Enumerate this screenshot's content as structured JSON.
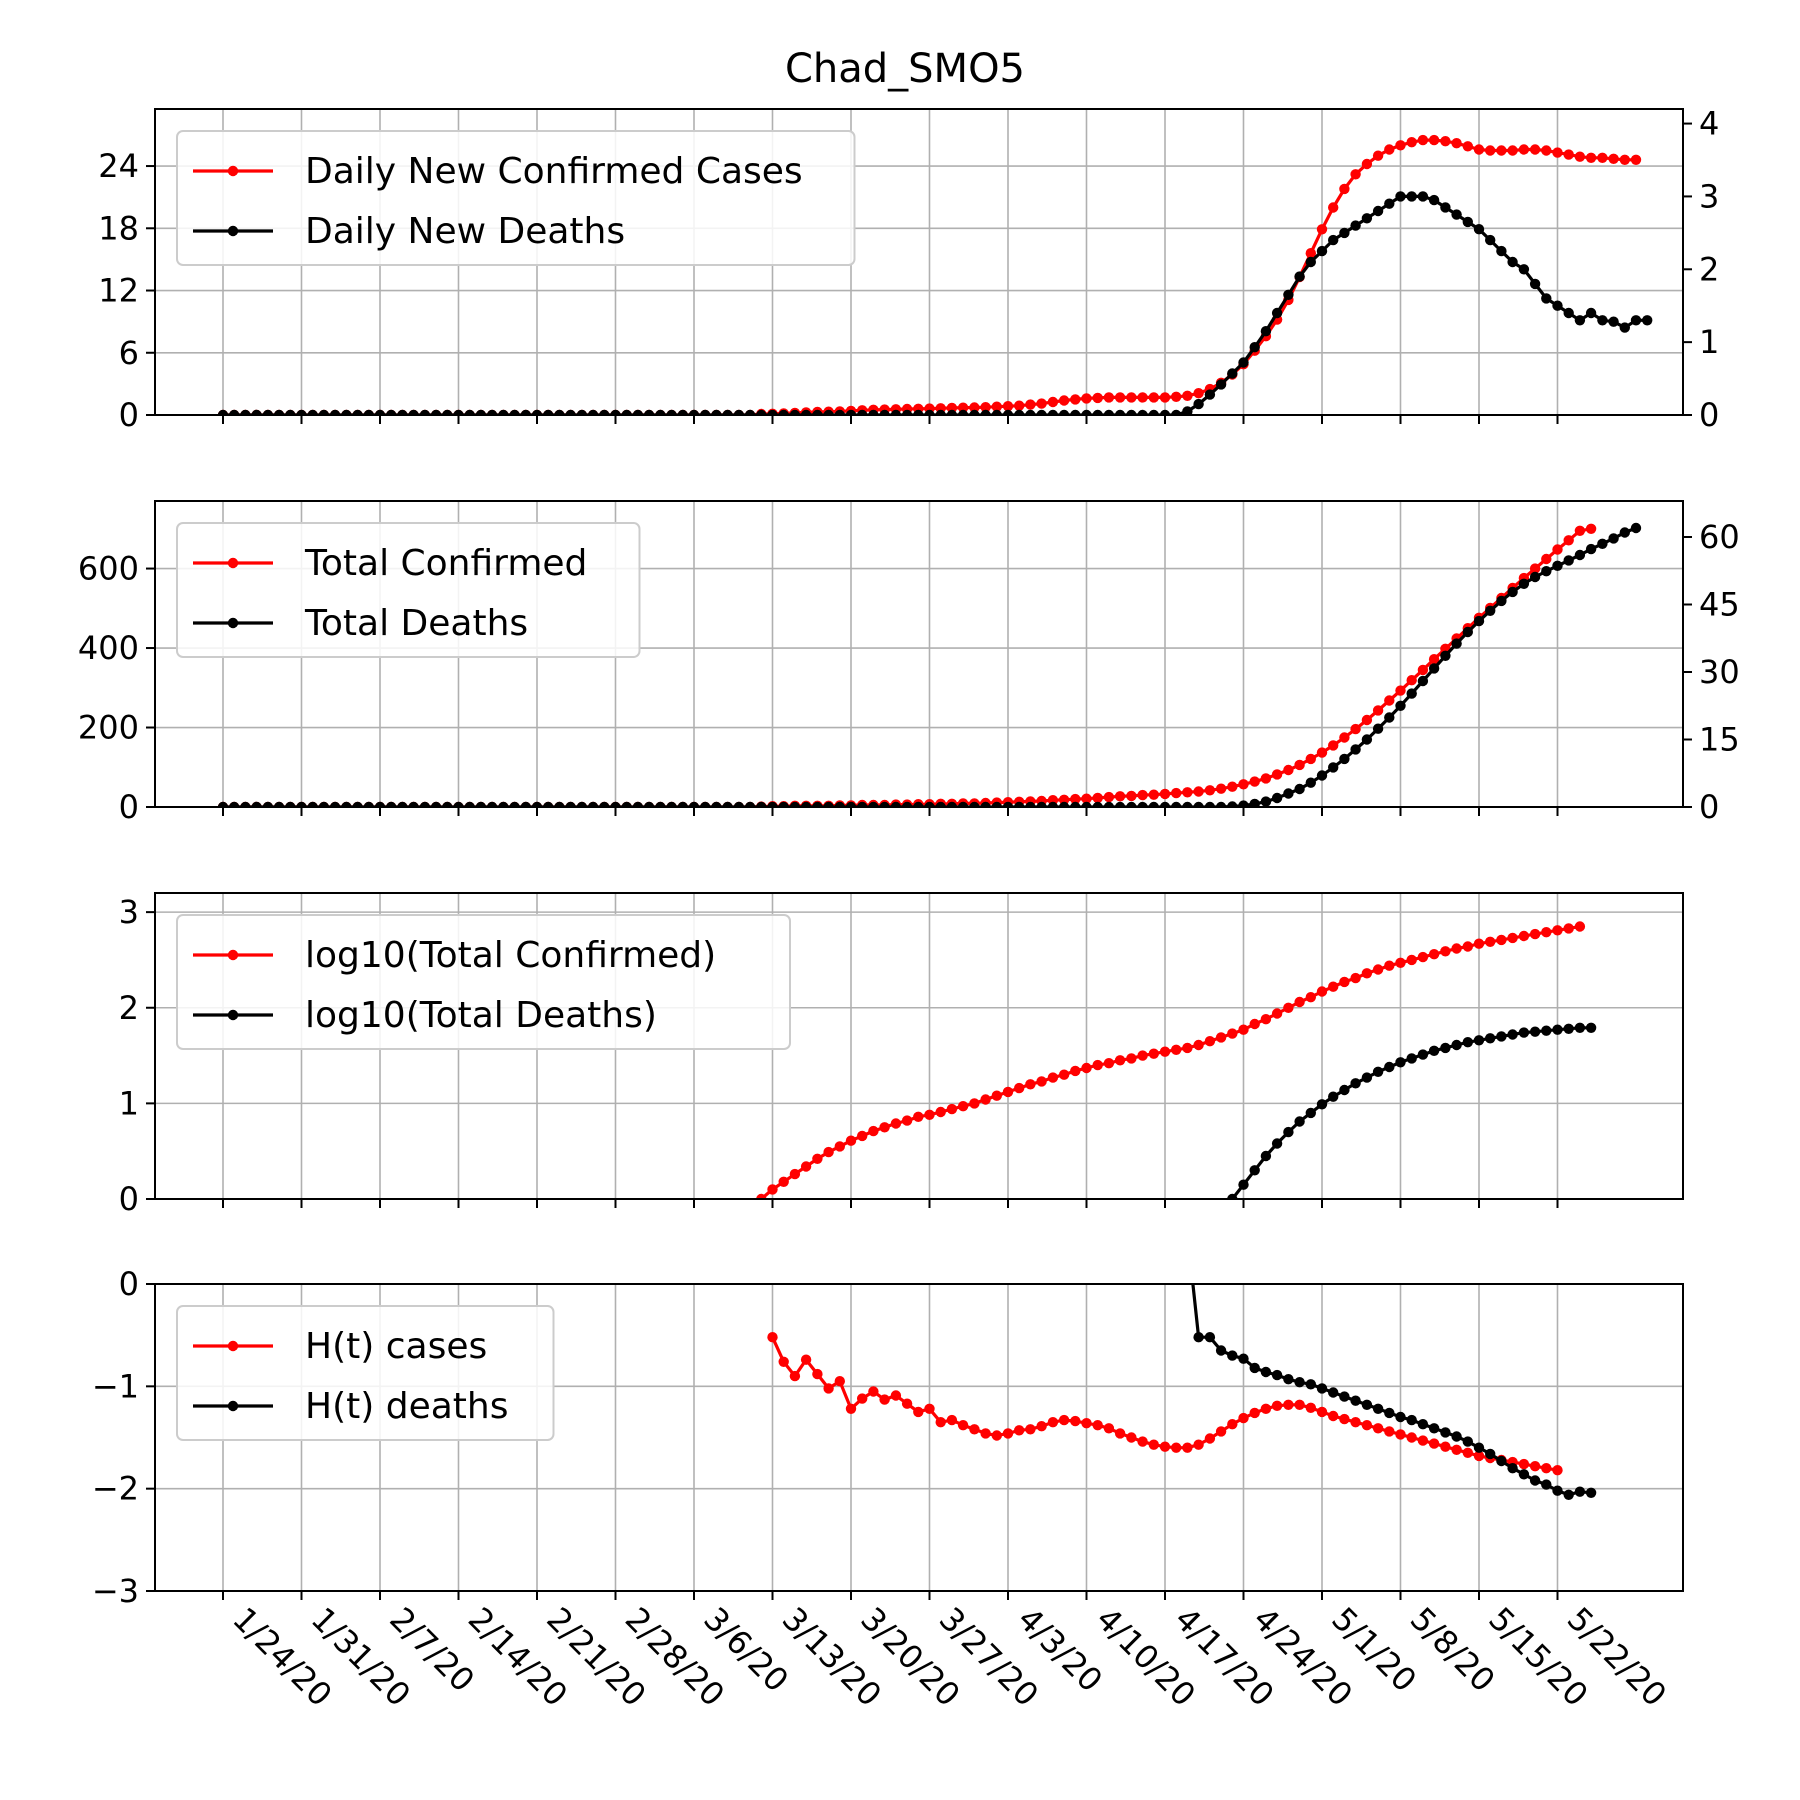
{
  "chart_data": {
    "title": "Chad_SMO5",
    "x_start_date": "1/22/20",
    "x_ticks": [
      "1/24/20",
      "1/31/20",
      "2/7/20",
      "2/14/20",
      "2/21/20",
      "2/28/20",
      "3/6/20",
      "3/13/20",
      "3/20/20",
      "3/27/20",
      "4/3/20",
      "4/10/20",
      "4/17/20",
      "4/24/20",
      "5/1/20",
      "5/8/20",
      "5/15/20",
      "5/22/20"
    ],
    "colors": {
      "cases": "#ff0000",
      "deaths": "#000000"
    },
    "panels": [
      {
        "type": "line",
        "legend_position": "top-left",
        "grid": true,
        "left_axis": {
          "ylim": [
            0,
            29.5
          ],
          "ticks": [
            0,
            6,
            12,
            18,
            24
          ],
          "tick_labels": [
            "0",
            "6",
            "12",
            "18",
            "24"
          ]
        },
        "right_axis": {
          "ylim": [
            0,
            4.2
          ],
          "ticks": [
            0,
            1,
            2,
            3,
            4
          ],
          "tick_labels": [
            "0",
            "1",
            "2",
            "3",
            "4"
          ]
        },
        "series": [
          {
            "name": "Daily New Confirmed Cases",
            "color": "#ff0000",
            "axis": "left",
            "start_index": 2,
            "values": [
              0,
              0,
              0,
              0,
              0,
              0,
              0,
              0,
              0,
              0,
              0,
              0,
              0,
              0,
              0,
              0,
              0,
              0,
              0,
              0,
              0,
              0,
              0,
              0,
              0,
              0,
              0,
              0,
              0,
              0,
              0,
              0,
              0,
              0,
              0,
              0,
              0,
              0,
              0,
              0,
              0,
              0,
              0,
              0,
              0,
              0,
              0,
              0,
              0.1,
              0.12,
              0.15,
              0.2,
              0.25,
              0.3,
              0.32,
              0.35,
              0.4,
              0.45,
              0.5,
              0.52,
              0.55,
              0.58,
              0.6,
              0.62,
              0.65,
              0.68,
              0.7,
              0.72,
              0.75,
              0.8,
              0.85,
              0.9,
              1.0,
              1.1,
              1.25,
              1.4,
              1.5,
              1.6,
              1.65,
              1.7,
              1.7,
              1.7,
              1.7,
              1.7,
              1.7,
              1.75,
              1.85,
              2.1,
              2.5,
              3.1,
              3.9,
              4.9,
              6.2,
              7.6,
              9.2,
              11.1,
              13.3,
              15.6,
              17.9,
              20.0,
              21.8,
              23.2,
              24.2,
              25.0,
              25.6,
              26.0,
              26.3,
              26.5,
              26.5,
              26.4,
              26.2,
              25.9,
              25.6,
              25.5,
              25.5,
              25.5,
              25.6,
              25.6,
              25.5,
              25.3,
              25.1,
              24.9,
              24.8,
              24.8,
              24.7,
              24.6,
              24.6
            ]
          },
          {
            "name": "Daily New Deaths",
            "color": "#000000",
            "axis": "right",
            "start_index": 2,
            "values": [
              0,
              0,
              0,
              0,
              0,
              0,
              0,
              0,
              0,
              0,
              0,
              0,
              0,
              0,
              0,
              0,
              0,
              0,
              0,
              0,
              0,
              0,
              0,
              0,
              0,
              0,
              0,
              0,
              0,
              0,
              0,
              0,
              0,
              0,
              0,
              0,
              0,
              0,
              0,
              0,
              0,
              0,
              0,
              0,
              0,
              0,
              0,
              0,
              0,
              0,
              0,
              0,
              0,
              0,
              0,
              0,
              0,
              0,
              0,
              0,
              0,
              0,
              0,
              0,
              0,
              0,
              0,
              0,
              0,
              0,
              0,
              0,
              0,
              0,
              0,
              0,
              0,
              0,
              0,
              0,
              0,
              0,
              0,
              0,
              0,
              0,
              0.05,
              0.15,
              0.28,
              0.42,
              0.57,
              0.72,
              0.93,
              1.15,
              1.4,
              1.65,
              1.9,
              2.1,
              2.25,
              2.4,
              2.5,
              2.6,
              2.7,
              2.8,
              2.9,
              3.0,
              3.0,
              3.0,
              2.95,
              2.85,
              2.75,
              2.65,
              2.55,
              2.4,
              2.25,
              2.1,
              2.0,
              1.8,
              1.6,
              1.5,
              1.4,
              1.3,
              1.4,
              1.3,
              1.28,
              1.2,
              1.3,
              1.3
            ]
          }
        ]
      },
      {
        "type": "line",
        "legend_position": "top-left",
        "grid": true,
        "left_axis": {
          "ylim": [
            0,
            770
          ],
          "ticks": [
            0,
            200,
            400,
            600
          ],
          "tick_labels": [
            "0",
            "200",
            "400",
            "600"
          ]
        },
        "right_axis": {
          "ylim": [
            0,
            68
          ],
          "ticks": [
            0,
            15,
            30,
            45,
            60
          ],
          "tick_labels": [
            "0",
            "15",
            "30",
            "45",
            "60"
          ]
        },
        "series": [
          {
            "name": "Total Confirmed",
            "color": "#ff0000",
            "axis": "left",
            "start_index": 2,
            "values": [
              0,
              0,
              0,
              0,
              0,
              0,
              0,
              0,
              0,
              0,
              0,
              0,
              0,
              0,
              0,
              0,
              0,
              0,
              0,
              0,
              0,
              0,
              0,
              0,
              0,
              0,
              0,
              0,
              0,
              0,
              0,
              0,
              0,
              0,
              0,
              0,
              0,
              0,
              0,
              0,
              0,
              0,
              0,
              0,
              0,
              0,
              0,
              0,
              1,
              2,
              2,
              3,
              3,
              3,
              3,
              4,
              4,
              5,
              5,
              5,
              6,
              6,
              7,
              7,
              8,
              8,
              9,
              9,
              10,
              11,
              12,
              13,
              14,
              15,
              17,
              18,
              20,
              21,
              23,
              25,
              27,
              28,
              30,
              31,
              33,
              35,
              37,
              39,
              42,
              46,
              51,
              57,
              64,
              72,
              82,
              93,
              106,
              121,
              137,
              155,
              175,
              196,
              219,
              243,
              268,
              293,
              319,
              345,
              372,
              398,
              424,
              450,
              476,
              501,
              526,
              551,
              576,
              600,
              624,
              648,
              671,
              695,
              700
            ]
          },
          {
            "name": "Total Deaths",
            "color": "#000000",
            "axis": "right",
            "start_index": 2,
            "values": [
              0,
              0,
              0,
              0,
              0,
              0,
              0,
              0,
              0,
              0,
              0,
              0,
              0,
              0,
              0,
              0,
              0,
              0,
              0,
              0,
              0,
              0,
              0,
              0,
              0,
              0,
              0,
              0,
              0,
              0,
              0,
              0,
              0,
              0,
              0,
              0,
              0,
              0,
              0,
              0,
              0,
              0,
              0,
              0,
              0,
              0,
              0,
              0,
              0,
              0,
              0,
              0,
              0,
              0,
              0,
              0,
              0,
              0,
              0,
              0,
              0,
              0,
              0,
              0,
              0,
              0,
              0,
              0,
              0,
              0,
              0,
              0,
              0,
              0,
              0,
              0,
              0,
              0,
              0,
              0,
              0,
              0,
              0,
              0,
              0,
              0,
              0,
              0,
              0,
              0,
              0.1,
              0.3,
              0.7,
              1.2,
              2,
              3,
              4,
              5.4,
              7,
              8.8,
              10.7,
              12.8,
              15,
              17.4,
              19.9,
              22.5,
              25.2,
              28,
              30.8,
              33.6,
              36.3,
              38.9,
              41.3,
              43.6,
              45.8,
              47.8,
              49.6,
              51.1,
              52.4,
              53.6,
              54.8,
              56,
              57.3,
              58.5,
              59.7,
              61,
              62
            ]
          }
        ]
      },
      {
        "type": "line",
        "legend_position": "top-left",
        "grid": true,
        "left_axis": {
          "ylim": [
            0,
            3.2
          ],
          "ticks": [
            0,
            1,
            2,
            3
          ],
          "tick_labels": [
            "0",
            "1",
            "2",
            "3"
          ]
        },
        "series": [
          {
            "name": "log10(Total Confirmed)",
            "color": "#ff0000",
            "axis": "left",
            "start_index": 50,
            "values": [
              0,
              0.1,
              0.18,
              0.26,
              0.34,
              0.42,
              0.49,
              0.55,
              0.61,
              0.66,
              0.71,
              0.75,
              0.79,
              0.82,
              0.86,
              0.88,
              0.91,
              0.94,
              0.97,
              1.0,
              1.04,
              1.08,
              1.12,
              1.16,
              1.2,
              1.23,
              1.27,
              1.3,
              1.34,
              1.37,
              1.4,
              1.42,
              1.45,
              1.47,
              1.5,
              1.52,
              1.54,
              1.56,
              1.58,
              1.61,
              1.65,
              1.69,
              1.73,
              1.77,
              1.83,
              1.88,
              1.94,
              2.0,
              2.06,
              2.11,
              2.17,
              2.22,
              2.27,
              2.31,
              2.36,
              2.4,
              2.44,
              2.47,
              2.5,
              2.53,
              2.56,
              2.59,
              2.62,
              2.64,
              2.67,
              2.69,
              2.71,
              2.73,
              2.75,
              2.77,
              2.79,
              2.81,
              2.83,
              2.85
            ]
          },
          {
            "name": "log10(Total Deaths)",
            "color": "#000000",
            "axis": "right",
            "start_index": 92,
            "values": [
              0,
              0.15,
              0.3,
              0.45,
              0.58,
              0.7,
              0.81,
              0.9,
              0.99,
              1.07,
              1.14,
              1.21,
              1.27,
              1.33,
              1.38,
              1.43,
              1.47,
              1.51,
              1.55,
              1.58,
              1.61,
              1.64,
              1.66,
              1.68,
              1.7,
              1.72,
              1.74,
              1.75,
              1.76,
              1.77,
              1.78,
              1.79,
              1.79
            ]
          }
        ]
      },
      {
        "type": "line",
        "legend_position": "top-left",
        "grid": true,
        "left_axis": {
          "ylim": [
            -3,
            0
          ],
          "ticks": [
            -3,
            -2,
            -1,
            0
          ],
          "tick_labels": [
            "−3",
            "−2",
            "−1",
            "0"
          ]
        },
        "series": [
          {
            "name": "H(t) cases",
            "color": "#ff0000",
            "axis": "left",
            "start_index": 51,
            "values": [
              -0.52,
              -0.76,
              -0.9,
              -0.74,
              -0.88,
              -1.02,
              -0.95,
              -1.22,
              -1.12,
              -1.05,
              -1.13,
              -1.09,
              -1.17,
              -1.25,
              -1.22,
              -1.35,
              -1.33,
              -1.38,
              -1.42,
              -1.46,
              -1.48,
              -1.46,
              -1.43,
              -1.42,
              -1.39,
              -1.35,
              -1.33,
              -1.34,
              -1.36,
              -1.38,
              -1.41,
              -1.46,
              -1.5,
              -1.54,
              -1.57,
              -1.59,
              -1.6,
              -1.6,
              -1.57,
              -1.51,
              -1.44,
              -1.37,
              -1.31,
              -1.26,
              -1.22,
              -1.19,
              -1.18,
              -1.18,
              -1.21,
              -1.25,
              -1.29,
              -1.32,
              -1.35,
              -1.38,
              -1.41,
              -1.44,
              -1.47,
              -1.5,
              -1.53,
              -1.56,
              -1.59,
              -1.62,
              -1.65,
              -1.68,
              -1.7,
              -1.72,
              -1.74,
              -1.76,
              -1.78,
              -1.8,
              -1.82
            ]
          },
          {
            "name": "H(t) deaths",
            "color": "#000000",
            "axis": "left",
            "start_index": 88,
            "values": [
              0.5,
              -0.52,
              -0.52,
              -0.65,
              -0.7,
              -0.73,
              -0.82,
              -0.86,
              -0.89,
              -0.93,
              -0.96,
              -0.98,
              -1.02,
              -1.06,
              -1.1,
              -1.14,
              -1.18,
              -1.22,
              -1.26,
              -1.3,
              -1.33,
              -1.37,
              -1.41,
              -1.45,
              -1.49,
              -1.54,
              -1.6,
              -1.66,
              -1.73,
              -1.8,
              -1.86,
              -1.92,
              -1.96,
              -2.02,
              -2.06,
              -2.03,
              -2.04
            ]
          }
        ]
      }
    ]
  }
}
